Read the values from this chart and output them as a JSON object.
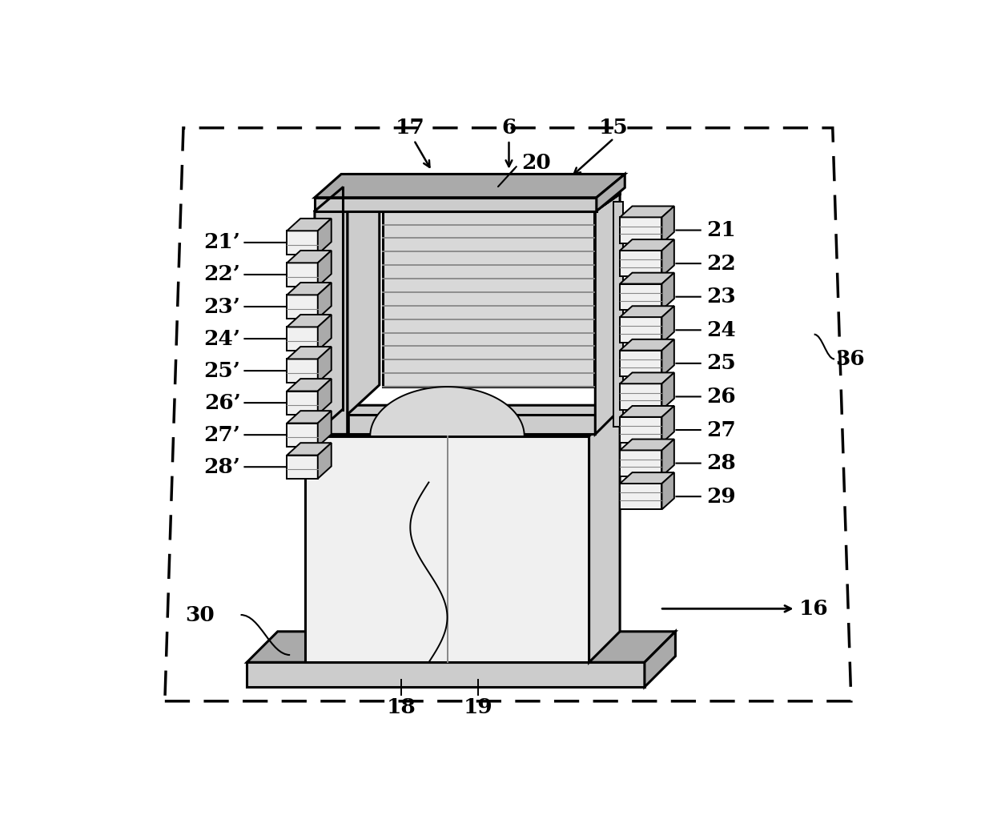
{
  "bg_color": "#ffffff",
  "line_color": "#000000",
  "fontsize": 19,
  "lw_main": 2.2,
  "lw_thin": 1.4,
  "gray_light": "#e8e8e8",
  "gray_mid": "#cccccc",
  "gray_dark": "#aaaaaa",
  "gray_very_light": "#f0f0f0",
  "stripe_color": "#999999",
  "right_labels": [
    "21",
    "22",
    "23",
    "24",
    "25",
    "26",
    "27",
    "28",
    "29"
  ],
  "left_labels": [
    "21’",
    "22’",
    "23’",
    "24’",
    "25’",
    "26’",
    "27’",
    "28’"
  ]
}
